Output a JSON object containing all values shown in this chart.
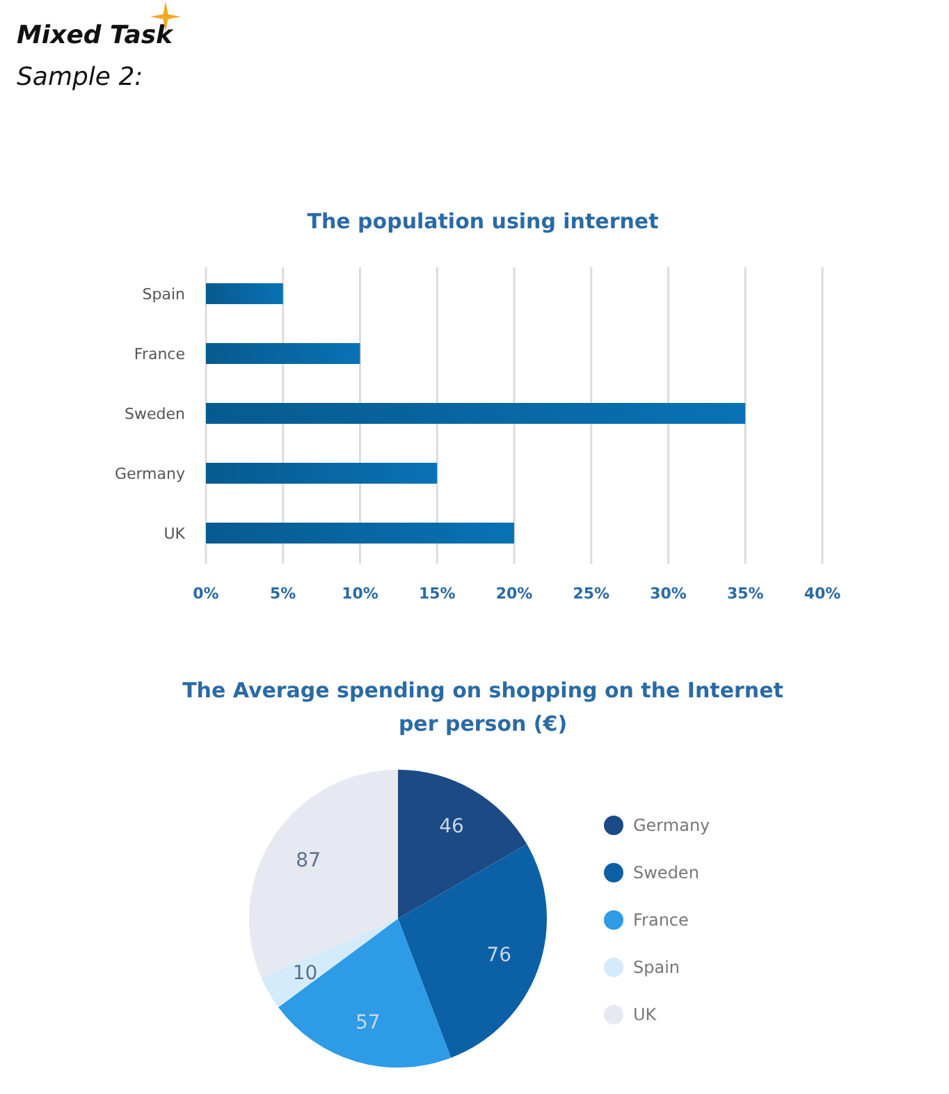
{
  "chart_data": [
    {
      "type": "bar",
      "orientation": "horizontal",
      "title": "The population using internet",
      "annotations": [
        "Mixed Task",
        "Sample 2:"
      ],
      "categories": [
        "Spain",
        "France",
        "Sweden",
        "Germany",
        "UK"
      ],
      "values": [
        5,
        10,
        35,
        15,
        20
      ],
      "color": "#0868a5",
      "xlim": [
        0,
        40
      ],
      "xticks": [
        {
          "value": 0,
          "label": "0%"
        },
        {
          "value": 5,
          "label": "5%"
        },
        {
          "value": 10,
          "label": "10%"
        },
        {
          "value": 15,
          "label": "15%"
        },
        {
          "value": 20,
          "label": "20%"
        },
        {
          "value": 25,
          "label": "25%"
        },
        {
          "value": 30,
          "label": "30%"
        },
        {
          "value": 35,
          "label": "35%"
        },
        {
          "value": 40,
          "label": "40%"
        }
      ],
      "grid": "x"
    },
    {
      "type": "pie",
      "title": "The Average spending on shopping on the Internet\nper person (€)",
      "categories": [
        "Germany",
        "Sweden",
        "France",
        "Spain",
        "UK"
      ],
      "values": [
        46,
        76,
        57,
        10,
        87
      ],
      "colors": [
        "#1b4a84",
        "#0c60a6",
        "#2d9be6",
        "#d3ebfa",
        "#e6e9f1"
      ],
      "data_labels": true,
      "legend": "right"
    }
  ]
}
